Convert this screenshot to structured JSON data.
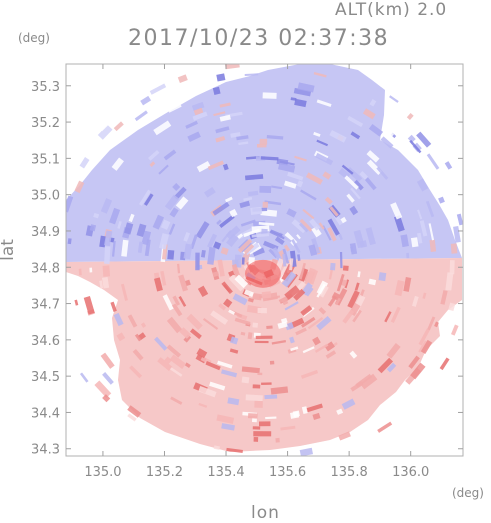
{
  "header": {
    "altitude_label": "ALT(km) 2.0",
    "timestamp": "2017/10/23 02:37:38"
  },
  "axes": {
    "y_unit": "(deg)",
    "x_unit": "(deg)",
    "y_label": "lat",
    "x_label": "lon",
    "lat_ticks": [
      "35.3",
      "35.2",
      "35.1",
      "35.0",
      "34.9",
      "34.8",
      "34.7",
      "34.6",
      "34.5",
      "34.4",
      "34.3"
    ],
    "lon_ticks": [
      "135.0",
      "135.2",
      "135.4",
      "135.6",
      "135.8",
      "136.0"
    ]
  },
  "map": {
    "lat_range": [
      34.28,
      35.36
    ],
    "lon_range": [
      134.88,
      136.17
    ],
    "radar_center": {
      "lon": 135.52,
      "lat": 34.815
    },
    "colors": {
      "positive": "#f05a5a",
      "negative": "#5a5ae6",
      "background": "#ffffff"
    }
  }
}
